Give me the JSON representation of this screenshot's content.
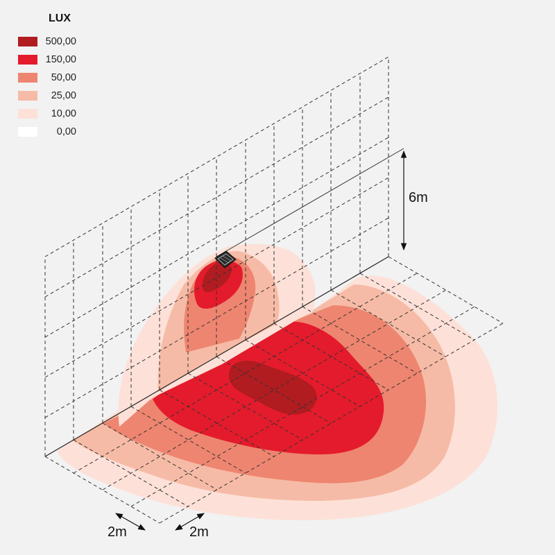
{
  "legend": {
    "title": "LUX",
    "items": [
      {
        "label": "500,00",
        "color": "#b01c20"
      },
      {
        "label": "150,00",
        "color": "#e41b2c"
      },
      {
        "label": "50,00",
        "color": "#ee8570"
      },
      {
        "label": "25,00",
        "color": "#f6bba6"
      },
      {
        "label": "10,00",
        "color": "#fde1d8"
      },
      {
        "label": "0,00",
        "color": "#ffffff"
      }
    ]
  },
  "dimensions": {
    "height": "6m",
    "grid_depth": "2m",
    "grid_width": "2m"
  },
  "icons": {
    "fixture": "floodlight-icon"
  }
}
